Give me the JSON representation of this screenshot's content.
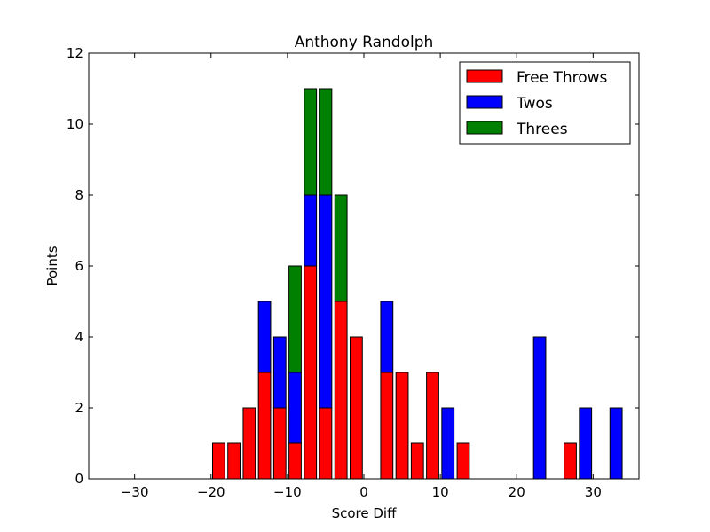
{
  "chart_data": {
    "type": "bar",
    "stacked": true,
    "title": "Anthony Randolph",
    "xlabel": "Score Diff",
    "ylabel": "Points",
    "xlim": [
      -36,
      36
    ],
    "ylim": [
      0,
      12
    ],
    "xticks": [
      -30,
      -20,
      -10,
      0,
      10,
      20,
      30
    ],
    "yticks": [
      0,
      2,
      4,
      6,
      8,
      10,
      12
    ],
    "xtick_labels": [
      "−30",
      "−20",
      "−10",
      "0",
      "10",
      "20",
      "30"
    ],
    "ytick_labels": [
      "0",
      "2",
      "4",
      "6",
      "8",
      "10",
      "12"
    ],
    "bar_width": 1.6,
    "legend_position": "top-right",
    "x": [
      -35,
      -33,
      -31,
      -29,
      -27,
      -25,
      -23,
      -21,
      -19,
      -17,
      -15,
      -13,
      -11,
      -9,
      -7,
      -5,
      -3,
      -1,
      1,
      3,
      5,
      7,
      9,
      11,
      13,
      15,
      17,
      19,
      21,
      23,
      25,
      27,
      29,
      31,
      33,
      35
    ],
    "series": [
      {
        "name": "Free Throws",
        "color": "#ff0000",
        "values": [
          0,
          0,
          0,
          0,
          0,
          0,
          0,
          0,
          1,
          1,
          2,
          3,
          2,
          1,
          6,
          2,
          5,
          4,
          0,
          3,
          3,
          1,
          3,
          0,
          1,
          0,
          0,
          0,
          0,
          0,
          0,
          1,
          0,
          0,
          0,
          0
        ]
      },
      {
        "name": "Twos",
        "color": "#0000ff",
        "values": [
          0,
          0,
          0,
          0,
          0,
          0,
          0,
          0,
          0,
          0,
          0,
          2,
          2,
          2,
          2,
          6,
          0,
          0,
          0,
          2,
          0,
          0,
          0,
          2,
          0,
          0,
          0,
          0,
          0,
          4,
          0,
          0,
          2,
          0,
          2,
          0
        ]
      },
      {
        "name": "Threes",
        "color": "#008000",
        "values": [
          0,
          0,
          0,
          0,
          0,
          0,
          0,
          0,
          0,
          0,
          0,
          0,
          0,
          3,
          3,
          3,
          3,
          0,
          0,
          0,
          0,
          0,
          0,
          0,
          0,
          0,
          0,
          0,
          0,
          0,
          0,
          0,
          0,
          0,
          0,
          0
        ]
      }
    ]
  }
}
